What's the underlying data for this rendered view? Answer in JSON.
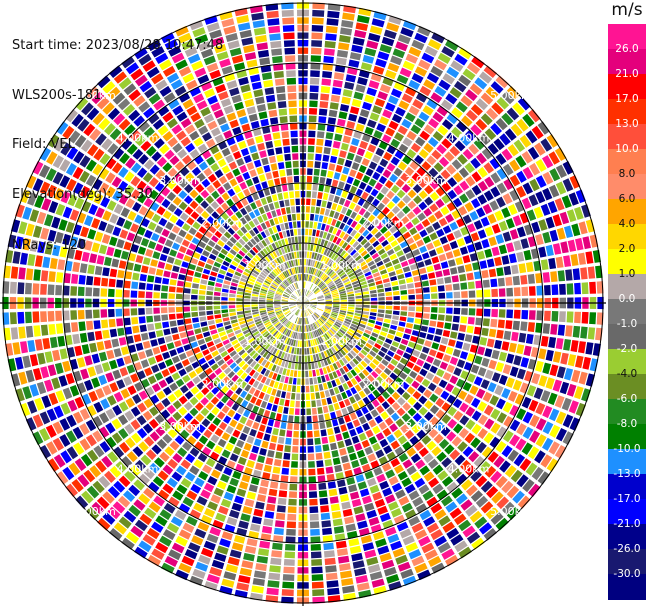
{
  "header": {
    "start_time": "Start time: 2023/08/28 10:47:48",
    "station": "WLS200s-181",
    "field": "Field: VEL",
    "elevation": "Elevation(deg): 35.30",
    "nrays": "NRays: 120"
  },
  "chart_data": {
    "type": "ppi",
    "field": "VEL",
    "nrays": 120,
    "range_rings": [
      "1.00km",
      "2.00km",
      "3.00km",
      "4.00km",
      "5.00km"
    ],
    "colorbar": {
      "unit": "m/s",
      "ticks": [
        "26.0",
        "21.0",
        "17.0",
        "13.0",
        "10.0",
        "8.0",
        "6.0",
        "4.0",
        "2.0",
        "1.0",
        "0.0",
        "-1.0",
        "-2.0",
        "-4.0",
        "-6.0",
        "-8.0",
        "-10.0",
        "-13.0",
        "-17.0",
        "-21.0",
        "-26.0",
        "-30.0"
      ],
      "colors": [
        "#ff1493",
        "#e4007c",
        "#ff0000",
        "#ff3000",
        "#ff4f3a",
        "#ff7f50",
        "#ff8c6a",
        "#ffa500",
        "#ffd700",
        "#ffff00",
        "#b4a8a8",
        "#787878",
        "#696969",
        "#9acd32",
        "#6b8e23",
        "#228b22",
        "#008000",
        "#1e90ff",
        "#0000cd",
        "#0000ff",
        "#00008b",
        "#191970",
        "#000080"
      ]
    }
  }
}
